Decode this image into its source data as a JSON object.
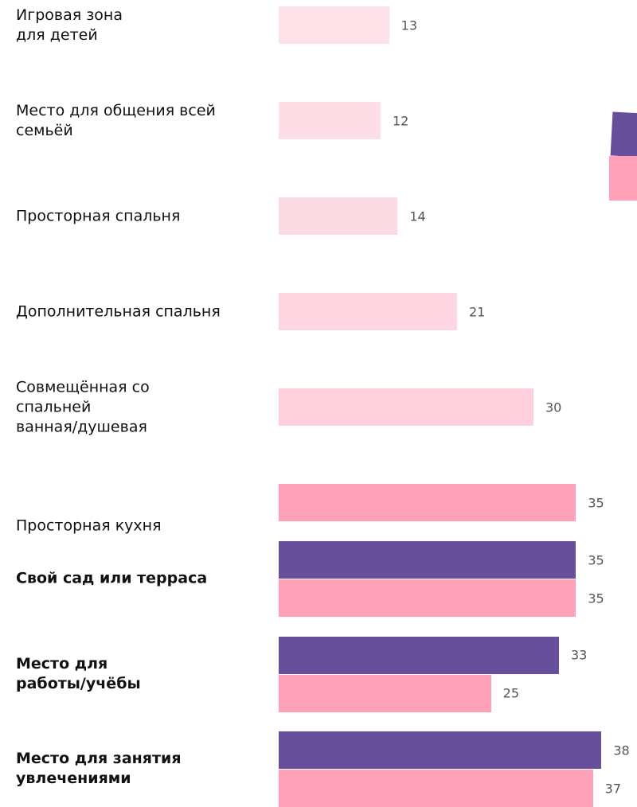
{
  "chart_data": {
    "type": "bar",
    "orientation": "horizontal",
    "categories": [
      "Игровая зона\nдля детей",
      "Место для общения всей\nсемьёй",
      "Просторная спальня",
      "Дополнительная спальня",
      "Совмещённая со\nспальней\nванная/душевая",
      "Просторная кухня",
      "Свой сад или терраса",
      "Место для\nработы/учёбы",
      "Место для занятия\nувлечениями"
    ],
    "bold_categories": [
      false,
      false,
      false,
      false,
      false,
      false,
      true,
      true,
      true
    ],
    "series": [
      {
        "color": "#674f9c",
        "values": [
          null,
          null,
          null,
          null,
          null,
          null,
          35,
          33,
          38
        ]
      },
      {
        "colors": [
          "#fde1e8",
          "#fddde6",
          "#fddbe4",
          "#fdd6e1",
          "#fdd0dc",
          "#fda0b8",
          "#fda0b8",
          "#fda0b8",
          "#fda0b8"
        ],
        "values": [
          13,
          12,
          14,
          21,
          30,
          35,
          35,
          25,
          37
        ]
      }
    ],
    "xlim": [
      0,
      42
    ],
    "grid": false
  }
}
